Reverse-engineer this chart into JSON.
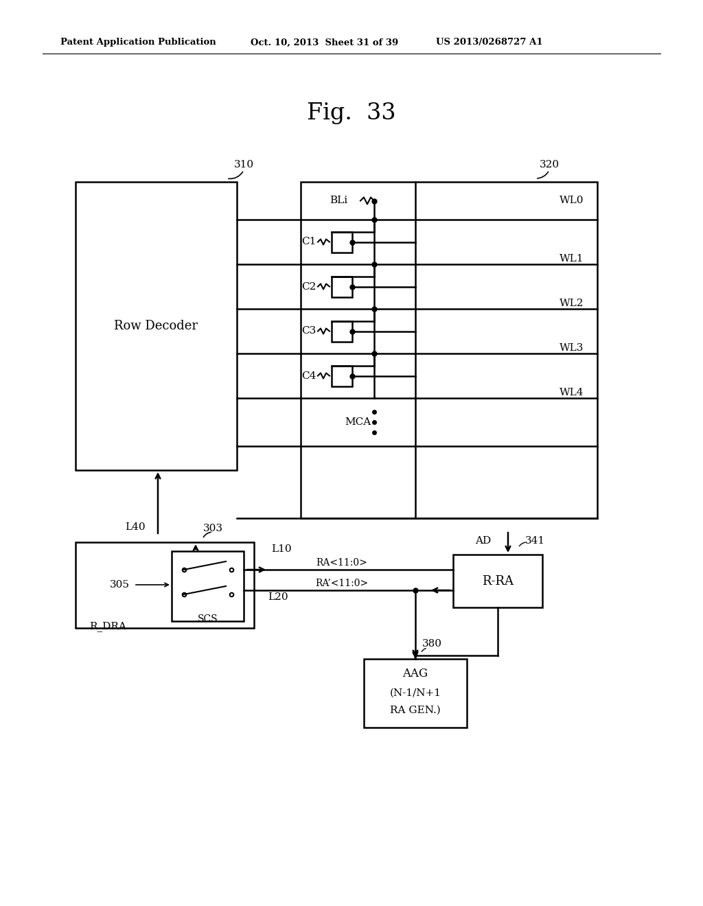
{
  "bg_color": "#ffffff",
  "header_left": "Patent Application Publication",
  "header_mid": "Oct. 10, 2013  Sheet 31 of 39",
  "header_right": "US 2013/0268727 A1",
  "fig_title": "Fig.  33",
  "label_310": "310",
  "label_320": "320",
  "label_303": "303",
  "label_305": "305",
  "label_341": "341",
  "label_380": "380",
  "label_L10": "L10",
  "label_L20": "L20",
  "label_L40": "L40",
  "label_AD": "AD",
  "label_BLi": "BLi",
  "label_WL0": "WL0",
  "label_WL1": "WL1",
  "label_WL2": "WL2",
  "label_WL3": "WL3",
  "label_WL4": "WL4",
  "label_C1": "C1",
  "label_C2": "C2",
  "label_C3": "C3",
  "label_C4": "C4",
  "label_MCA": "MCA",
  "label_RA": "RA<11:0>",
  "label_RA2": "RA’<11:0>",
  "label_RRA": "R-RA",
  "label_RDRA": "R_DRA",
  "label_SCS": "SCS",
  "label_AAG_line1": "AAG",
  "label_AAG_line2": "(N-1/N+1",
  "label_AAG_line3": "RA GEN.)",
  "label_RowDecoder": "Row Decoder"
}
